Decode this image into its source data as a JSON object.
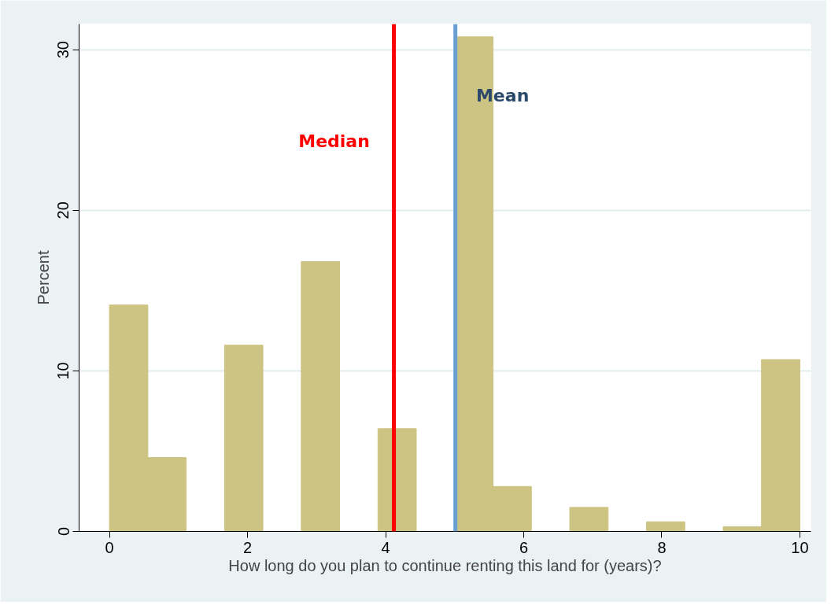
{
  "chart_data": {
    "type": "histogram",
    "xlabel": "How long do you plan to continue renting this land for (years)?",
    "ylabel": "Percent",
    "bins": [
      0,
      0.556,
      1.111,
      1.667,
      2.222,
      2.778,
      3.333,
      3.889,
      4.444,
      5,
      5.556,
      6.111,
      6.667,
      7.222,
      7.778,
      8.333,
      8.889,
      9.444,
      10
    ],
    "values": [
      14.1,
      4.6,
      0,
      11.6,
      0,
      16.8,
      0,
      6.4,
      0,
      30.8,
      2.8,
      0,
      1.5,
      0,
      0.6,
      0,
      0.3,
      10.7
    ],
    "color": "#cdc382",
    "xlim": [
      -0.44,
      10.16
    ],
    "xticks": [
      0,
      2,
      4,
      6,
      8,
      10
    ],
    "ylim": [
      0,
      31.6
    ],
    "yticks": [
      0,
      10,
      20,
      30
    ],
    "grid": "y",
    "ref_lines": [
      {
        "axis": "x",
        "value": 4.12,
        "label": "Median",
        "color": "#ff0000"
      },
      {
        "axis": "x",
        "value": 5.01,
        "label": "Mean",
        "color": "#6a9fd4"
      }
    ]
  }
}
